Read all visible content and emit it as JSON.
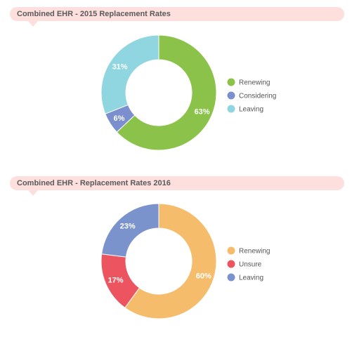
{
  "charts": [
    {
      "title": "Combined EHR - 2015 Replacement Rates"
    },
    {
      "title": "Combined EHR - Replacement Rates 2016"
    }
  ],
  "chart_data": [
    {
      "type": "pie",
      "title": "Combined EHR - 2015 Replacement Rates",
      "categories": [
        "Renewing",
        "Considering",
        "Leaving"
      ],
      "values": [
        63,
        6,
        31
      ],
      "labels": [
        "63%",
        "6%",
        "31%"
      ],
      "colors": [
        "#8bc34a",
        "#7b8fcf",
        "#8fd6e0"
      ],
      "legend_position": "right"
    },
    {
      "type": "pie",
      "title": "Combined EHR - Replacement Rates 2016",
      "categories": [
        "Renewing",
        "Unsure",
        "Leaving"
      ],
      "values": [
        60,
        17,
        23
      ],
      "labels": [
        "60%",
        "17%",
        "23%"
      ],
      "colors": [
        "#f5bc6b",
        "#ec5560",
        "#7b93cc"
      ],
      "legend_position": "right"
    }
  ]
}
